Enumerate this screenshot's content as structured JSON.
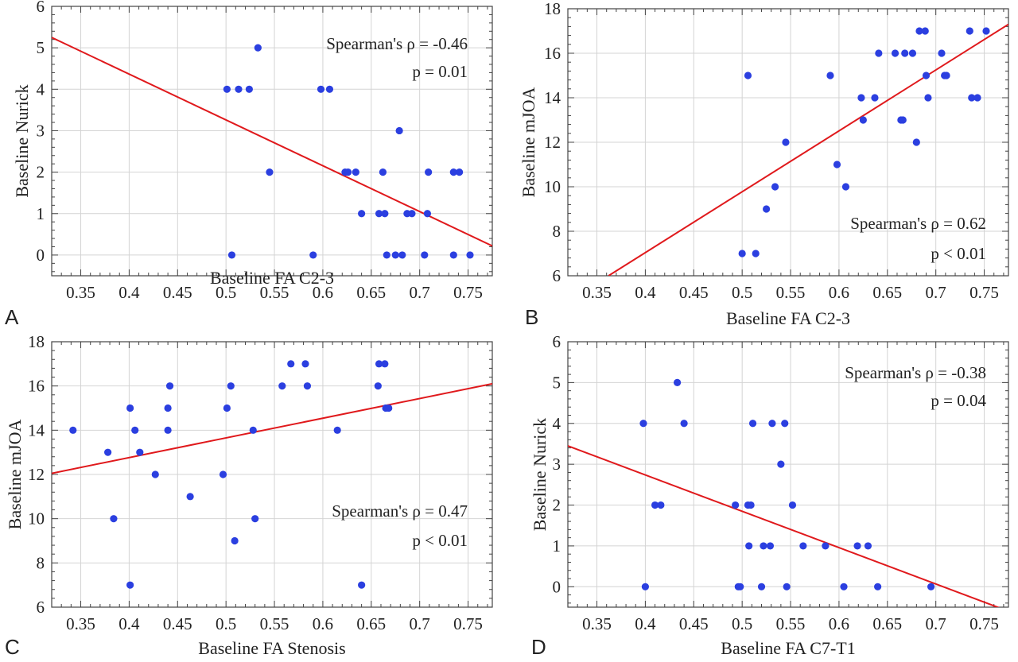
{
  "chart_data": [
    {
      "type": "scatter",
      "panel": "A",
      "xlabel": "Baseline FA C2-3",
      "ylabel": "Baseline Nurick",
      "xlim": [
        0.32,
        0.775
      ],
      "ylim": [
        -0.5,
        6
      ],
      "xticks": [
        0.35,
        0.4,
        0.45,
        0.5,
        0.55,
        0.6,
        0.65,
        0.7,
        0.75
      ],
      "xtick_labels": [
        "0.35",
        "0.4",
        "0.45",
        "0.5",
        "0.55",
        "0.6",
        "0.65",
        "0.7",
        "0.75"
      ],
      "yticks": [
        0,
        1,
        2,
        3,
        4,
        5,
        6
      ],
      "ytick_labels": [
        "0",
        "1",
        "2",
        "3",
        "4",
        "5",
        "6"
      ],
      "grid": true,
      "annotations": [
        "Spearman's ρ = -0.46",
        "p = 0.01"
      ],
      "points": [
        [
          0.501,
          4
        ],
        [
          0.513,
          4
        ],
        [
          0.524,
          4
        ],
        [
          0.533,
          5
        ],
        [
          0.598,
          4
        ],
        [
          0.607,
          4
        ],
        [
          0.545,
          2
        ],
        [
          0.506,
          0
        ],
        [
          0.59,
          0
        ],
        [
          0.623,
          2
        ],
        [
          0.626,
          2
        ],
        [
          0.634,
          2
        ],
        [
          0.662,
          2
        ],
        [
          0.709,
          2
        ],
        [
          0.735,
          2
        ],
        [
          0.741,
          2
        ],
        [
          0.679,
          3
        ],
        [
          0.64,
          1
        ],
        [
          0.658,
          1
        ],
        [
          0.664,
          1
        ],
        [
          0.687,
          1
        ],
        [
          0.692,
          1
        ],
        [
          0.708,
          1
        ],
        [
          0.666,
          0
        ],
        [
          0.675,
          0
        ],
        [
          0.682,
          0
        ],
        [
          0.705,
          0
        ],
        [
          0.735,
          0
        ],
        [
          0.752,
          0
        ]
      ],
      "fit_line": [
        [
          0.32,
          5.25
        ],
        [
          0.775,
          0.22
        ]
      ]
    },
    {
      "type": "scatter",
      "panel": "B",
      "xlabel": "Baseline FA C2-3",
      "ylabel": "Baseline mJOA",
      "xlim": [
        0.32,
        0.775
      ],
      "ylim": [
        6,
        18
      ],
      "xticks": [
        0.35,
        0.4,
        0.45,
        0.5,
        0.55,
        0.6,
        0.65,
        0.7,
        0.75
      ],
      "xtick_labels": [
        "0.35",
        "0.4",
        "0.45",
        "0.5",
        "0.55",
        "0.6",
        "0.65",
        "0.7",
        "0.75"
      ],
      "yticks": [
        6,
        8,
        10,
        12,
        14,
        16,
        18
      ],
      "ytick_labels": [
        "6",
        "8",
        "10",
        "12",
        "14",
        "16",
        "18"
      ],
      "grid": true,
      "annotations": [
        "Spearman's ρ = 0.62",
        "p < 0.01"
      ],
      "points": [
        [
          0.5,
          7
        ],
        [
          0.514,
          7
        ],
        [
          0.506,
          15
        ],
        [
          0.525,
          9
        ],
        [
          0.534,
          10
        ],
        [
          0.545,
          12
        ],
        [
          0.591,
          15
        ],
        [
          0.598,
          11
        ],
        [
          0.607,
          10
        ],
        [
          0.623,
          14
        ],
        [
          0.625,
          13
        ],
        [
          0.637,
          14
        ],
        [
          0.641,
          16
        ],
        [
          0.658,
          16
        ],
        [
          0.664,
          13
        ],
        [
          0.666,
          13
        ],
        [
          0.668,
          16
        ],
        [
          0.676,
          16
        ],
        [
          0.68,
          12
        ],
        [
          0.683,
          17
        ],
        [
          0.689,
          17
        ],
        [
          0.69,
          15
        ],
        [
          0.692,
          14
        ],
        [
          0.706,
          16
        ],
        [
          0.709,
          15
        ],
        [
          0.711,
          15
        ],
        [
          0.735,
          17
        ],
        [
          0.737,
          14
        ],
        [
          0.743,
          14
        ],
        [
          0.752,
          17
        ]
      ],
      "fit_line": [
        [
          0.362,
          6
        ],
        [
          0.775,
          17.3
        ]
      ]
    },
    {
      "type": "scatter",
      "panel": "C",
      "xlabel": "Baseline FA Stenosis",
      "ylabel": "Baseline mJOA",
      "xlim": [
        0.32,
        0.775
      ],
      "ylim": [
        6,
        18
      ],
      "xticks": [
        0.35,
        0.4,
        0.45,
        0.5,
        0.55,
        0.6,
        0.65,
        0.7,
        0.75
      ],
      "xtick_labels": [
        "0.35",
        "0.4",
        "0.45",
        "0.5",
        "0.55",
        "0.6",
        "0.65",
        "0.7",
        "0.75"
      ],
      "yticks": [
        6,
        8,
        10,
        12,
        14,
        16,
        18
      ],
      "ytick_labels": [
        "6",
        "8",
        "10",
        "12",
        "14",
        "16",
        "18"
      ],
      "grid": true,
      "annotations": [
        "Spearman's ρ = 0.47",
        "p < 0.01"
      ],
      "points": [
        [
          0.342,
          14
        ],
        [
          0.378,
          13
        ],
        [
          0.384,
          10
        ],
        [
          0.401,
          15
        ],
        [
          0.406,
          14
        ],
        [
          0.411,
          13
        ],
        [
          0.401,
          7
        ],
        [
          0.427,
          12
        ],
        [
          0.44,
          15
        ],
        [
          0.44,
          14
        ],
        [
          0.442,
          16
        ],
        [
          0.463,
          11
        ],
        [
          0.497,
          12
        ],
        [
          0.501,
          15
        ],
        [
          0.505,
          16
        ],
        [
          0.509,
          9
        ],
        [
          0.528,
          14
        ],
        [
          0.53,
          10
        ],
        [
          0.558,
          16
        ],
        [
          0.567,
          17
        ],
        [
          0.582,
          17
        ],
        [
          0.584,
          16
        ],
        [
          0.615,
          14
        ],
        [
          0.64,
          7
        ],
        [
          0.657,
          16
        ],
        [
          0.658,
          17
        ],
        [
          0.664,
          17
        ],
        [
          0.665,
          15
        ],
        [
          0.668,
          15
        ]
      ],
      "fit_line": [
        [
          0.32,
          12.05
        ],
        [
          0.775,
          16.1
        ]
      ]
    },
    {
      "type": "scatter",
      "panel": "D",
      "xlabel": "Baseline FA C7-T1",
      "ylabel": "Baseline Nurick",
      "xlim": [
        0.32,
        0.775
      ],
      "ylim": [
        -0.5,
        6
      ],
      "xticks": [
        0.35,
        0.4,
        0.45,
        0.5,
        0.55,
        0.6,
        0.65,
        0.7,
        0.75
      ],
      "xtick_labels": [
        "0.35",
        "0.4",
        "0.45",
        "0.5",
        "0.55",
        "0.6",
        "0.65",
        "0.7",
        "0.75"
      ],
      "yticks": [
        0,
        1,
        2,
        3,
        4,
        5,
        6
      ],
      "ytick_labels": [
        "0",
        "1",
        "2",
        "3",
        "4",
        "5",
        "6"
      ],
      "grid": true,
      "annotations": [
        "Spearman's ρ = -0.38",
        "p = 0.04"
      ],
      "points": [
        [
          0.398,
          4
        ],
        [
          0.4,
          0
        ],
        [
          0.41,
          2
        ],
        [
          0.416,
          2
        ],
        [
          0.433,
          5
        ],
        [
          0.44,
          4
        ],
        [
          0.493,
          2
        ],
        [
          0.496,
          0
        ],
        [
          0.498,
          0
        ],
        [
          0.506,
          2
        ],
        [
          0.507,
          1
        ],
        [
          0.509,
          2
        ],
        [
          0.511,
          4
        ],
        [
          0.52,
          0
        ],
        [
          0.522,
          1
        ],
        [
          0.529,
          1
        ],
        [
          0.531,
          4
        ],
        [
          0.54,
          3
        ],
        [
          0.544,
          4
        ],
        [
          0.546,
          0
        ],
        [
          0.552,
          2
        ],
        [
          0.563,
          1
        ],
        [
          0.586,
          1
        ],
        [
          0.605,
          0
        ],
        [
          0.619,
          1
        ],
        [
          0.63,
          1
        ],
        [
          0.64,
          0
        ],
        [
          0.695,
          0
        ]
      ],
      "fit_line": [
        [
          0.32,
          3.45
        ],
        [
          0.775,
          -0.6
        ]
      ]
    }
  ],
  "panel_letters": [
    "A",
    "B",
    "C",
    "D"
  ],
  "colors": {
    "point": "#2b3fe0",
    "fit_line": "#e0191c",
    "grid": "#d4d4d4",
    "axis": "#444444"
  }
}
